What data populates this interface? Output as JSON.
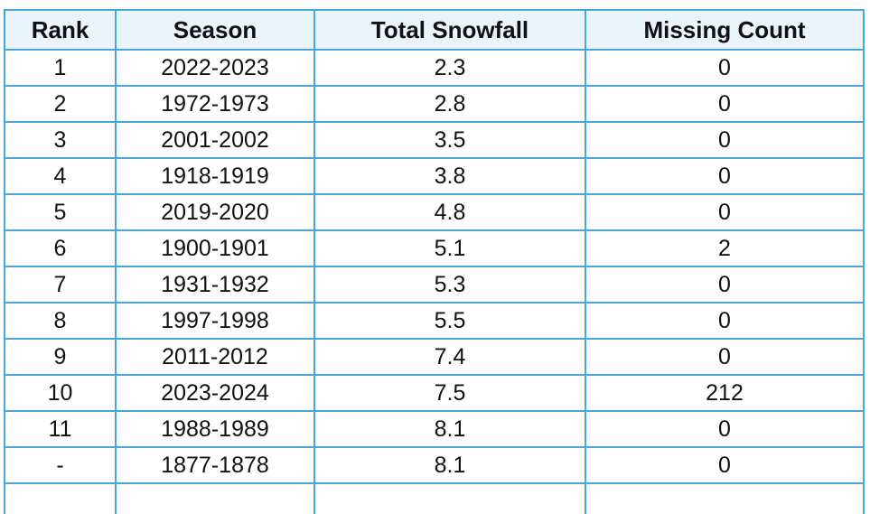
{
  "table": {
    "headers": [
      "Rank",
      "Season",
      "Total Snowfall",
      "Missing Count"
    ],
    "rows": [
      [
        "1",
        "2022-2023",
        "2.3",
        "0"
      ],
      [
        "2",
        "1972-1973",
        "2.8",
        "0"
      ],
      [
        "3",
        "2001-2002",
        "3.5",
        "0"
      ],
      [
        "4",
        "1918-1919",
        "3.8",
        "0"
      ],
      [
        "5",
        "2019-2020",
        "4.8",
        "0"
      ],
      [
        "6",
        "1900-1901",
        "5.1",
        "2"
      ],
      [
        "7",
        "1931-1932",
        "5.3",
        "0"
      ],
      [
        "8",
        "1997-1998",
        "5.5",
        "0"
      ],
      [
        "9",
        "2011-2012",
        "7.4",
        "0"
      ],
      [
        "10",
        "2023-2024",
        "7.5",
        "212"
      ],
      [
        "11",
        "1988-1989",
        "8.1",
        "0"
      ],
      [
        "-",
        "1877-1878",
        "8.1",
        "0"
      ],
      [
        "",
        "",
        "",
        ""
      ]
    ]
  },
  "colors": {
    "border": "#4aa6dc",
    "header_background": "#e9f4fb",
    "text": "#111111"
  }
}
